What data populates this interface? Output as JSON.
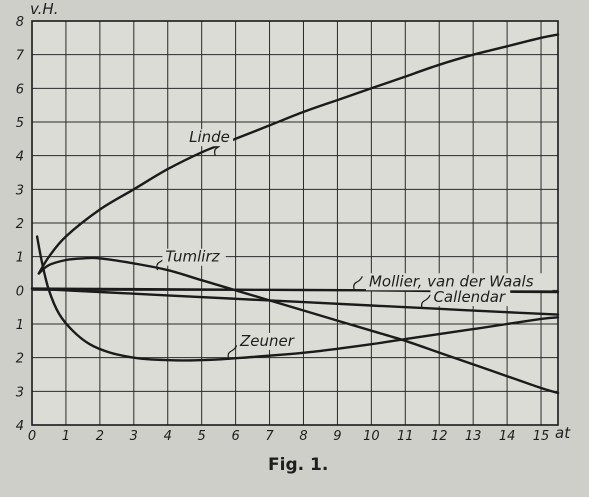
{
  "chart_data": {
    "type": "line",
    "ylabel": "v.H.",
    "xlabel": "at",
    "caption": "Fig. 1.",
    "xlim": [
      0,
      15.5
    ],
    "ylim": [
      -4,
      8
    ],
    "grid": true,
    "x_ticks": [
      {
        "v": 0,
        "t": "0"
      },
      {
        "v": 1,
        "t": "1"
      },
      {
        "v": 2,
        "t": "2"
      },
      {
        "v": 3,
        "t": "3"
      },
      {
        "v": 4,
        "t": "4"
      },
      {
        "v": 5,
        "t": "5"
      },
      {
        "v": 6,
        "t": "6"
      },
      {
        "v": 7,
        "t": "7"
      },
      {
        "v": 8,
        "t": "8"
      },
      {
        "v": 9,
        "t": "9"
      },
      {
        "v": 10,
        "t": "10"
      },
      {
        "v": 11,
        "t": "11"
      },
      {
        "v": 12,
        "t": "12"
      },
      {
        "v": 13,
        "t": "13"
      },
      {
        "v": 14,
        "t": "14"
      },
      {
        "v": 15,
        "t": "15"
      }
    ],
    "y_ticks": [
      {
        "v": 8,
        "t": "8"
      },
      {
        "v": 7,
        "t": "7"
      },
      {
        "v": 6,
        "t": "6"
      },
      {
        "v": 5,
        "t": "5"
      },
      {
        "v": 4,
        "t": "4"
      },
      {
        "v": 3,
        "t": "3"
      },
      {
        "v": 2,
        "t": "2"
      },
      {
        "v": 1,
        "t": "1"
      },
      {
        "v": 0,
        "t": "0"
      },
      {
        "v": -1,
        "t": "1"
      },
      {
        "v": -2,
        "t": "2"
      },
      {
        "v": -3,
        "t": "3"
      },
      {
        "v": -4,
        "t": "4"
      }
    ],
    "series": [
      {
        "name": "Linde",
        "x": [
          0.2,
          0.5,
          1,
          2,
          3,
          4,
          5,
          6,
          7,
          8,
          9,
          10,
          11,
          12,
          13,
          14,
          15,
          15.5
        ],
        "y": [
          0.5,
          1.0,
          1.6,
          2.4,
          3.0,
          3.6,
          4.1,
          4.5,
          4.9,
          5.3,
          5.65,
          6.0,
          6.35,
          6.7,
          7.0,
          7.25,
          7.5,
          7.6
        ]
      },
      {
        "name": "Tumlirz",
        "x": [
          0.2,
          0.5,
          1,
          1.5,
          2,
          3,
          4,
          5,
          6,
          7,
          8,
          9,
          10,
          11,
          12,
          13,
          14,
          15,
          15.5
        ],
        "y": [
          0.5,
          0.75,
          0.9,
          0.95,
          0.95,
          0.8,
          0.6,
          0.3,
          0.0,
          -0.3,
          -0.6,
          -0.9,
          -1.2,
          -1.5,
          -1.85,
          -2.2,
          -2.55,
          -2.9,
          -3.05
        ]
      },
      {
        "name": "Mollier, van der Waals",
        "x": [
          0,
          2,
          4,
          6,
          8,
          10,
          12,
          14,
          15.5
        ],
        "y": [
          0.05,
          0.04,
          0.03,
          0.02,
          0.01,
          0.0,
          -0.02,
          -0.04,
          -0.05
        ]
      },
      {
        "name": "Callendar",
        "x": [
          0,
          2,
          4,
          6,
          8,
          10,
          12,
          14,
          15.5
        ],
        "y": [
          0.05,
          -0.05,
          -0.15,
          -0.25,
          -0.35,
          -0.45,
          -0.55,
          -0.65,
          -0.72
        ]
      },
      {
        "name": "Zeuner",
        "x": [
          0.15,
          0.3,
          0.5,
          0.8,
          1.2,
          1.7,
          2.3,
          3,
          3.5,
          4.5,
          5.5,
          6.5,
          7.5,
          8.5,
          10,
          11,
          12,
          13,
          14,
          15,
          15.5
        ],
        "y": [
          1.6,
          0.8,
          0.0,
          -0.7,
          -1.2,
          -1.6,
          -1.85,
          -2.0,
          -2.05,
          -2.08,
          -2.05,
          -1.98,
          -1.9,
          -1.8,
          -1.6,
          -1.45,
          -1.3,
          -1.15,
          -1.0,
          -0.85,
          -0.8
        ]
      }
    ],
    "annotations": [
      {
        "series": "Linde",
        "text": "Linde",
        "x": 5.4,
        "y": 4.0,
        "tx": 4.6,
        "ty": 4.4
      },
      {
        "series": "Tumlirz",
        "text": "Tumlirz",
        "x": 3.7,
        "y": 0.6,
        "tx": 3.9,
        "ty": 0.85
      },
      {
        "series": "Mollier, van der Waals",
        "text": "Mollier, van der Waals",
        "x": 9.5,
        "y": 0.0,
        "tx": 9.9,
        "ty": 0.12
      },
      {
        "series": "Callendar",
        "text": "Callendar",
        "x": 11.5,
        "y": -0.55,
        "tx": 11.8,
        "ty": -0.35
      },
      {
        "series": "Zeuner",
        "text": "Zeuner",
        "x": 5.8,
        "y": -2.05,
        "tx": 6.1,
        "ty": -1.65
      }
    ]
  }
}
